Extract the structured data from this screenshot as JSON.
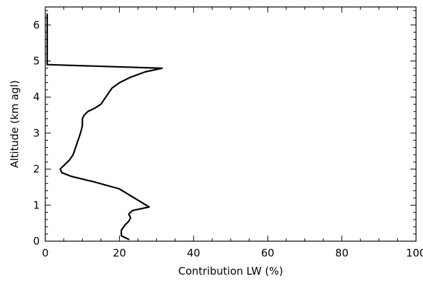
{
  "chart_data": {
    "type": "line",
    "title": "",
    "xlabel": "Contribution LW (%)",
    "ylabel": "Altitude (km agl)",
    "xlim": [
      0,
      100
    ],
    "ylim": [
      0,
      6.5
    ],
    "x_ticks": [
      0,
      20,
      40,
      60,
      80,
      100
    ],
    "x_tick_labels": [
      "0",
      "20",
      "40",
      "60",
      "80",
      "100"
    ],
    "y_ticks": [
      0,
      1,
      2,
      3,
      4,
      5,
      6
    ],
    "y_tick_labels": [
      "0",
      "1",
      "2",
      "3",
      "4",
      "5",
      "6"
    ],
    "grid": false,
    "series": [
      {
        "points": [
          {
            "x": 22.5,
            "y": 0.05
          },
          {
            "x": 20.5,
            "y": 0.15
          },
          {
            "x": 20.5,
            "y": 0.3
          },
          {
            "x": 21.5,
            "y": 0.45
          },
          {
            "x": 22.5,
            "y": 0.55
          },
          {
            "x": 23.0,
            "y": 0.65
          },
          {
            "x": 22.5,
            "y": 0.75
          },
          {
            "x": 23.5,
            "y": 0.85
          },
          {
            "x": 28.0,
            "y": 0.95
          },
          {
            "x": 24.0,
            "y": 1.2
          },
          {
            "x": 20.0,
            "y": 1.45
          },
          {
            "x": 13.0,
            "y": 1.65
          },
          {
            "x": 7.0,
            "y": 1.8
          },
          {
            "x": 4.5,
            "y": 1.9
          },
          {
            "x": 4.0,
            "y": 2.0
          },
          {
            "x": 5.0,
            "y": 2.1
          },
          {
            "x": 6.5,
            "y": 2.25
          },
          {
            "x": 7.5,
            "y": 2.4
          },
          {
            "x": 8.0,
            "y": 2.55
          },
          {
            "x": 8.5,
            "y": 2.7
          },
          {
            "x": 9.0,
            "y": 2.85
          },
          {
            "x": 9.5,
            "y": 3.0
          },
          {
            "x": 10.0,
            "y": 3.2
          },
          {
            "x": 10.0,
            "y": 3.4
          },
          {
            "x": 10.5,
            "y": 3.5
          },
          {
            "x": 11.5,
            "y": 3.6
          },
          {
            "x": 13.5,
            "y": 3.7
          },
          {
            "x": 15.0,
            "y": 3.8
          },
          {
            "x": 16.0,
            "y": 3.95
          },
          {
            "x": 17.0,
            "y": 4.1
          },
          {
            "x": 18.0,
            "y": 4.25
          },
          {
            "x": 20.0,
            "y": 4.4
          },
          {
            "x": 23.0,
            "y": 4.55
          },
          {
            "x": 27.0,
            "y": 4.7
          },
          {
            "x": 31.5,
            "y": 4.8
          },
          {
            "x": 0.5,
            "y": 4.9
          },
          {
            "x": 0.5,
            "y": 6.3
          }
        ]
      }
    ]
  }
}
